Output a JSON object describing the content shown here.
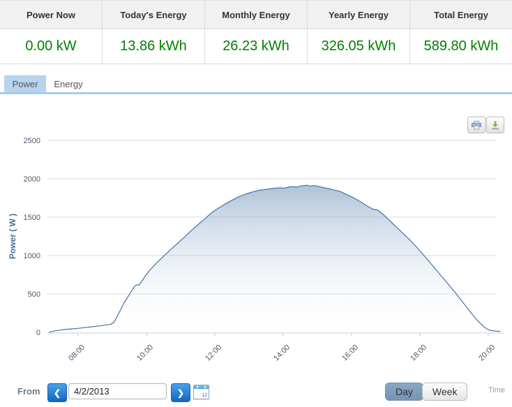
{
  "stats": {
    "columns": [
      {
        "label": "Power Now",
        "value": "0.00 kW"
      },
      {
        "label": "Today's Energy",
        "value": "13.86 kWh"
      },
      {
        "label": "Monthly Energy",
        "value": "26.23 kWh"
      },
      {
        "label": "Yearly Energy",
        "value": "326.05 kWh"
      },
      {
        "label": "Total Energy",
        "value": "589.80 kWh"
      }
    ],
    "value_color": "#008000"
  },
  "tabs": [
    {
      "label": "Power",
      "active": true
    },
    {
      "label": "Energy",
      "active": false
    }
  ],
  "chart_data": {
    "type": "area",
    "title": "",
    "xlabel": "",
    "ylabel": "Power ( W )",
    "ylim": [
      0,
      2500
    ],
    "yticks": [
      0,
      500,
      1000,
      1500,
      2000,
      2500
    ],
    "xticks": [
      "08:00",
      "10:00",
      "12:00",
      "14:00",
      "16:00",
      "18:00",
      "20:00"
    ],
    "xtick_hours": [
      8,
      10,
      12,
      14,
      16,
      18,
      20
    ],
    "xlim_hours": [
      7.1,
      20.35
    ],
    "grid": true,
    "legend_position": "none",
    "line_color": "#4572a7",
    "fill_top_color": "#4572a7",
    "fill_top_opacity": 0.72,
    "fill_bottom_opacity": 0.05,
    "grid_color": "#d8d8d8",
    "axis_color": "#c0d0e0",
    "tick_label_color": "#49586b",
    "ylabel_color": "#4a6d9b",
    "series": [
      {
        "name": "Power",
        "points": [
          [
            7.15,
            0
          ],
          [
            7.25,
            12
          ],
          [
            7.4,
            25
          ],
          [
            7.6,
            36
          ],
          [
            7.8,
            45
          ],
          [
            8.0,
            52
          ],
          [
            8.2,
            62
          ],
          [
            8.45,
            74
          ],
          [
            8.7,
            88
          ],
          [
            8.95,
            103
          ],
          [
            9.05,
            130
          ],
          [
            9.15,
            215
          ],
          [
            9.25,
            300
          ],
          [
            9.35,
            390
          ],
          [
            9.45,
            455
          ],
          [
            9.55,
            530
          ],
          [
            9.65,
            600
          ],
          [
            9.72,
            618
          ],
          [
            9.78,
            615
          ],
          [
            9.85,
            655
          ],
          [
            9.95,
            725
          ],
          [
            10.1,
            810
          ],
          [
            10.3,
            905
          ],
          [
            10.5,
            990
          ],
          [
            10.7,
            1075
          ],
          [
            10.9,
            1155
          ],
          [
            11.1,
            1235
          ],
          [
            11.3,
            1320
          ],
          [
            11.5,
            1400
          ],
          [
            11.7,
            1475
          ],
          [
            11.9,
            1555
          ],
          [
            12.1,
            1615
          ],
          [
            12.3,
            1670
          ],
          [
            12.5,
            1720
          ],
          [
            12.7,
            1765
          ],
          [
            12.9,
            1800
          ],
          [
            13.1,
            1828
          ],
          [
            13.3,
            1850
          ],
          [
            13.5,
            1862
          ],
          [
            13.7,
            1874
          ],
          [
            13.9,
            1882
          ],
          [
            14.0,
            1876
          ],
          [
            14.15,
            1892
          ],
          [
            14.3,
            1898
          ],
          [
            14.4,
            1890
          ],
          [
            14.55,
            1908
          ],
          [
            14.7,
            1915
          ],
          [
            14.8,
            1904
          ],
          [
            14.9,
            1912
          ],
          [
            15.05,
            1898
          ],
          [
            15.2,
            1882
          ],
          [
            15.35,
            1870
          ],
          [
            15.5,
            1852
          ],
          [
            15.65,
            1838
          ],
          [
            15.8,
            1805
          ],
          [
            16.0,
            1765
          ],
          [
            16.2,
            1715
          ],
          [
            16.4,
            1660
          ],
          [
            16.55,
            1622
          ],
          [
            16.65,
            1598
          ],
          [
            16.75,
            1595
          ],
          [
            16.9,
            1545
          ],
          [
            17.1,
            1462
          ],
          [
            17.3,
            1375
          ],
          [
            17.5,
            1290
          ],
          [
            17.7,
            1205
          ],
          [
            17.9,
            1110
          ],
          [
            18.1,
            1010
          ],
          [
            18.3,
            905
          ],
          [
            18.5,
            800
          ],
          [
            18.7,
            695
          ],
          [
            18.9,
            590
          ],
          [
            19.1,
            480
          ],
          [
            19.3,
            365
          ],
          [
            19.5,
            250
          ],
          [
            19.7,
            145
          ],
          [
            19.85,
            82
          ],
          [
            19.95,
            45
          ],
          [
            20.05,
            26
          ],
          [
            20.15,
            18
          ],
          [
            20.35,
            12
          ]
        ]
      }
    ]
  },
  "icons": {
    "prev": "❮",
    "next": "❯",
    "calendar_day": "12"
  },
  "footer": {
    "from_label": "From",
    "date_value": "4/2/2013",
    "range_buttons": [
      {
        "label": "Day",
        "active": true
      },
      {
        "label": "Week",
        "active": false
      }
    ],
    "time_label": "Time"
  }
}
